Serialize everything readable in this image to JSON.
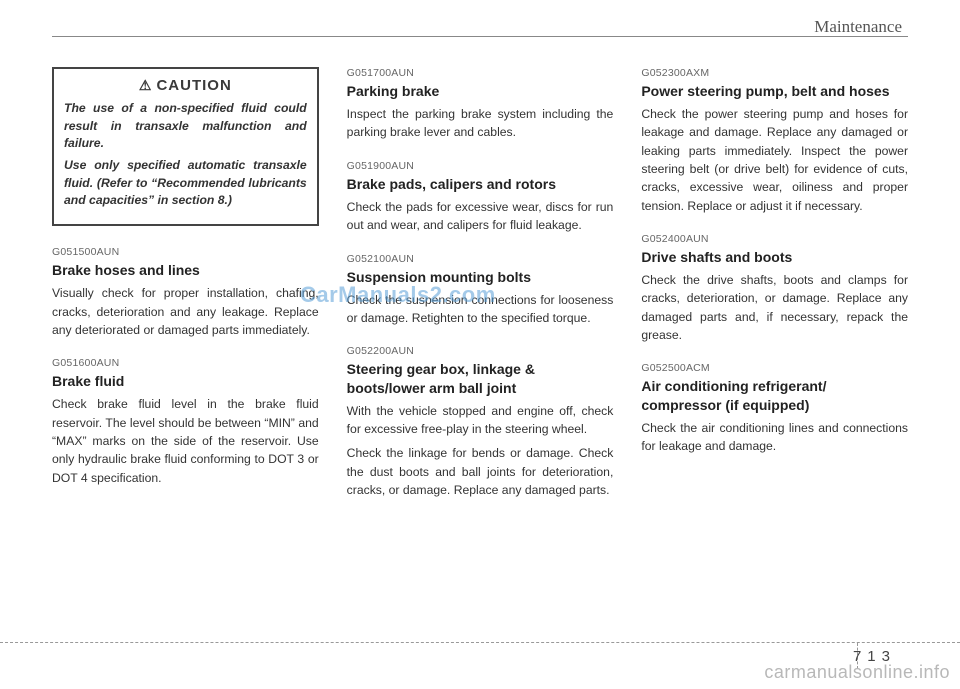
{
  "header": {
    "title": "Maintenance"
  },
  "caution": {
    "label": "CAUTION",
    "p1": "The use of a non-specified fluid could result in transaxle malfunction and failure.",
    "p2": "Use only specified automatic transaxle fluid. (Refer to “Recommended lubricants and capacities” in section 8.)"
  },
  "col1": {
    "s1": {
      "code": "G051500AUN",
      "head": "Brake hoses and lines",
      "body": "Visually check for proper installation, chafing, cracks, deterioration and any leakage. Replace any deteriorated or damaged parts immediately."
    },
    "s2": {
      "code": "G051600AUN",
      "head": "Brake fluid",
      "body": "Check brake fluid level in the brake fluid reservoir. The level should be between “MIN” and “MAX” marks on the side of the reservoir. Use only hydraulic brake fluid conforming to DOT 3 or DOT 4 specification."
    }
  },
  "col2": {
    "s1": {
      "code": "G051700AUN",
      "head": "Parking brake",
      "body": "Inspect the parking brake system including the parking brake lever and cables."
    },
    "s2": {
      "code": "G051900AUN",
      "head": "Brake pads, calipers and rotors",
      "body": "Check the pads for excessive wear, discs for run out and wear, and calipers for fluid leakage."
    },
    "s3": {
      "code": "G052100AUN",
      "head": "Suspension mounting bolts",
      "body": "Check the suspension connections for looseness or damage. Retighten to the specified torque."
    },
    "s4": {
      "code": "G052200AUN",
      "head": "Steering gear box, linkage & boots/lower arm ball joint",
      "p1": "With the vehicle stopped and engine off, check for excessive free-play in the steering wheel.",
      "p2": "Check the linkage for bends or damage. Check the dust boots and ball joints for deterioration, cracks, or damage. Replace any damaged parts."
    }
  },
  "col3": {
    "s1": {
      "code": "G052300AXM",
      "head": "Power steering pump, belt and hoses",
      "body": "Check the power steering pump and hoses for leakage and damage. Replace any damaged or leaking parts immediately. Inspect the power steering belt (or drive belt) for evidence of cuts, cracks, excessive wear, oiliness and proper tension. Replace or adjust it if necessary."
    },
    "s2": {
      "code": "G052400AUN",
      "head": "Drive shafts and boots",
      "body": "Check the drive shafts, boots and clamps for cracks, deterioration, or damage. Replace any damaged parts and, if necessary, repack the grease."
    },
    "s3": {
      "code": "G052500ACM",
      "head": "Air conditioning refrigerant/ compressor (if equipped)",
      "body": "Check the air conditioning lines and connections for leakage and damage."
    }
  },
  "watermark": "CarManuals2.com",
  "footer": {
    "pagenum": "713",
    "brand": "carmanualsonline.info"
  }
}
